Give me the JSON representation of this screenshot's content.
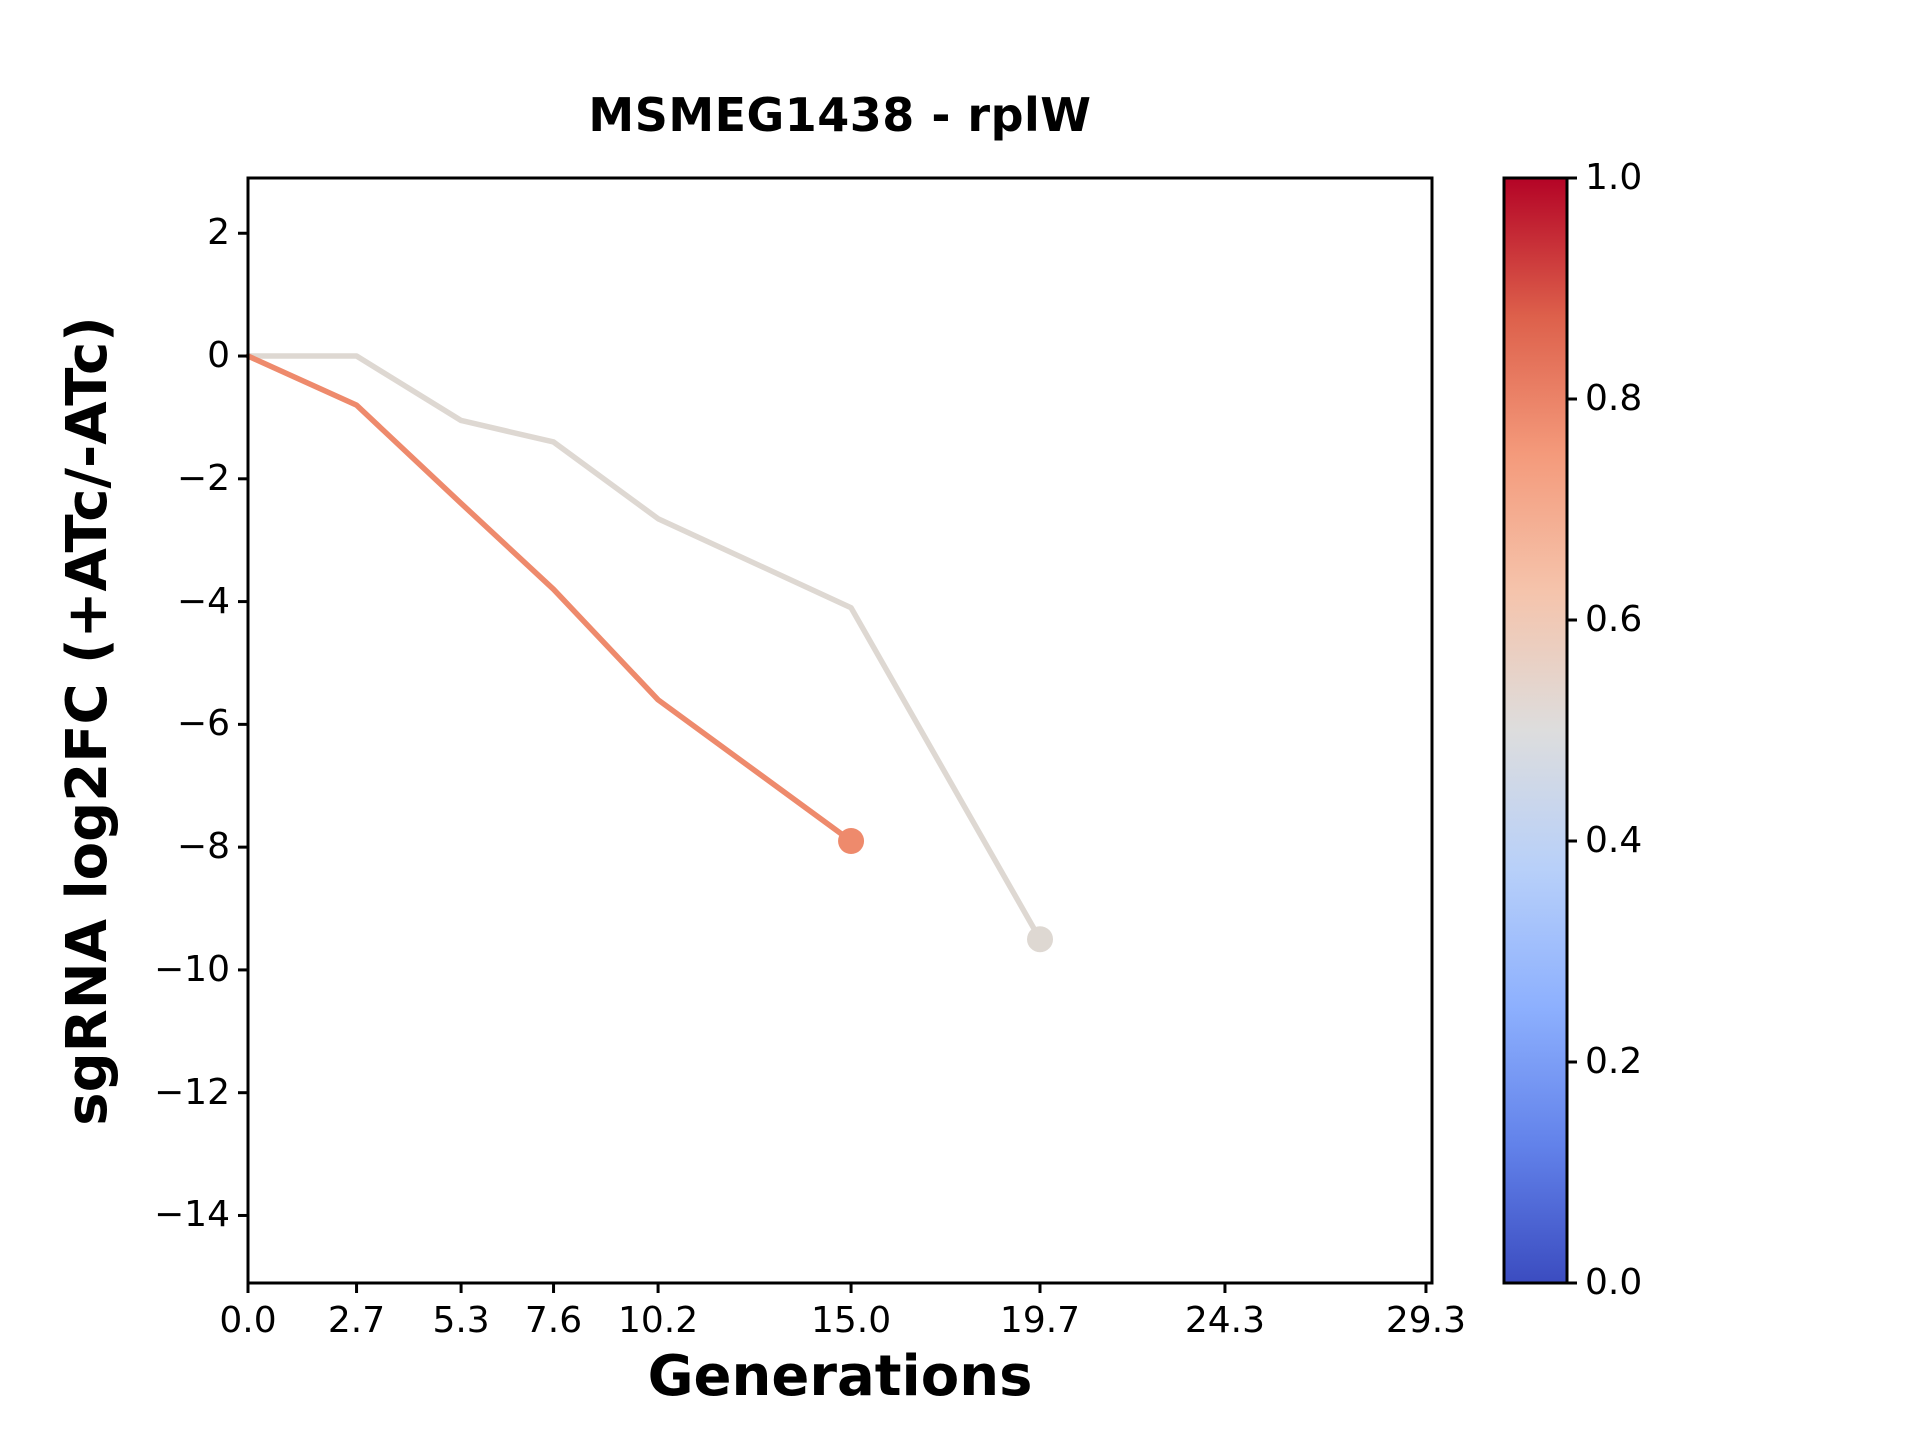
{
  "figure": {
    "background": "#ffffff"
  },
  "chart_data": {
    "type": "line",
    "title": "MSMEG1438 - rplW",
    "xlabel": "Generations",
    "ylabel": "sgRNA log2FC (+ATc/-ATc)",
    "xlim": [
      0,
      29.45
    ],
    "ylim": [
      -15.1,
      2.9
    ],
    "grid": false,
    "legend": "none",
    "xticks": [
      0.0,
      2.7,
      5.3,
      7.6,
      10.2,
      15.0,
      19.7,
      24.3,
      29.3
    ],
    "xtick_labels": [
      "0.0",
      "2.7",
      "5.3",
      "7.6",
      "10.2",
      "15.0",
      "19.7",
      "24.3",
      "29.3"
    ],
    "yticks": [
      2,
      0,
      -2,
      -4,
      -6,
      -8,
      -10,
      -12,
      -14
    ],
    "ytick_labels": [
      "2",
      "0",
      "−2",
      "−4",
      "−6",
      "−8",
      "−10",
      "−12",
      "−14"
    ],
    "series": [
      {
        "colormap_value": 0.55,
        "color": "#ded8d2",
        "x": [
          0.0,
          2.7,
          5.3,
          7.6,
          10.2,
          15.0,
          19.7
        ],
        "y": [
          0.0,
          0.0,
          -1.05,
          -1.4,
          -2.65,
          -4.1,
          -9.5
        ],
        "end_marker": true
      },
      {
        "colormap_value": 0.8,
        "color": "#ee8a6c",
        "x": [
          0.0,
          2.7,
          5.3,
          7.6,
          10.2,
          15.0
        ],
        "y": [
          0.0,
          -0.8,
          -2.4,
          -3.8,
          -5.6,
          -7.9
        ],
        "end_marker": true
      }
    ],
    "colorbar": {
      "colormap": "coolwarm",
      "tick_labels": [
        "1.0",
        "0.8",
        "0.6",
        "0.4",
        "0.2",
        "0.0"
      ],
      "gradient_top_to_bottom": [
        "#b40426",
        "#dd604b",
        "#f49a7b",
        "#f5c4ac",
        "#dddddd",
        "#b8d0f9",
        "#8db0fe",
        "#6282ea",
        "#3b4cc0"
      ]
    }
  }
}
